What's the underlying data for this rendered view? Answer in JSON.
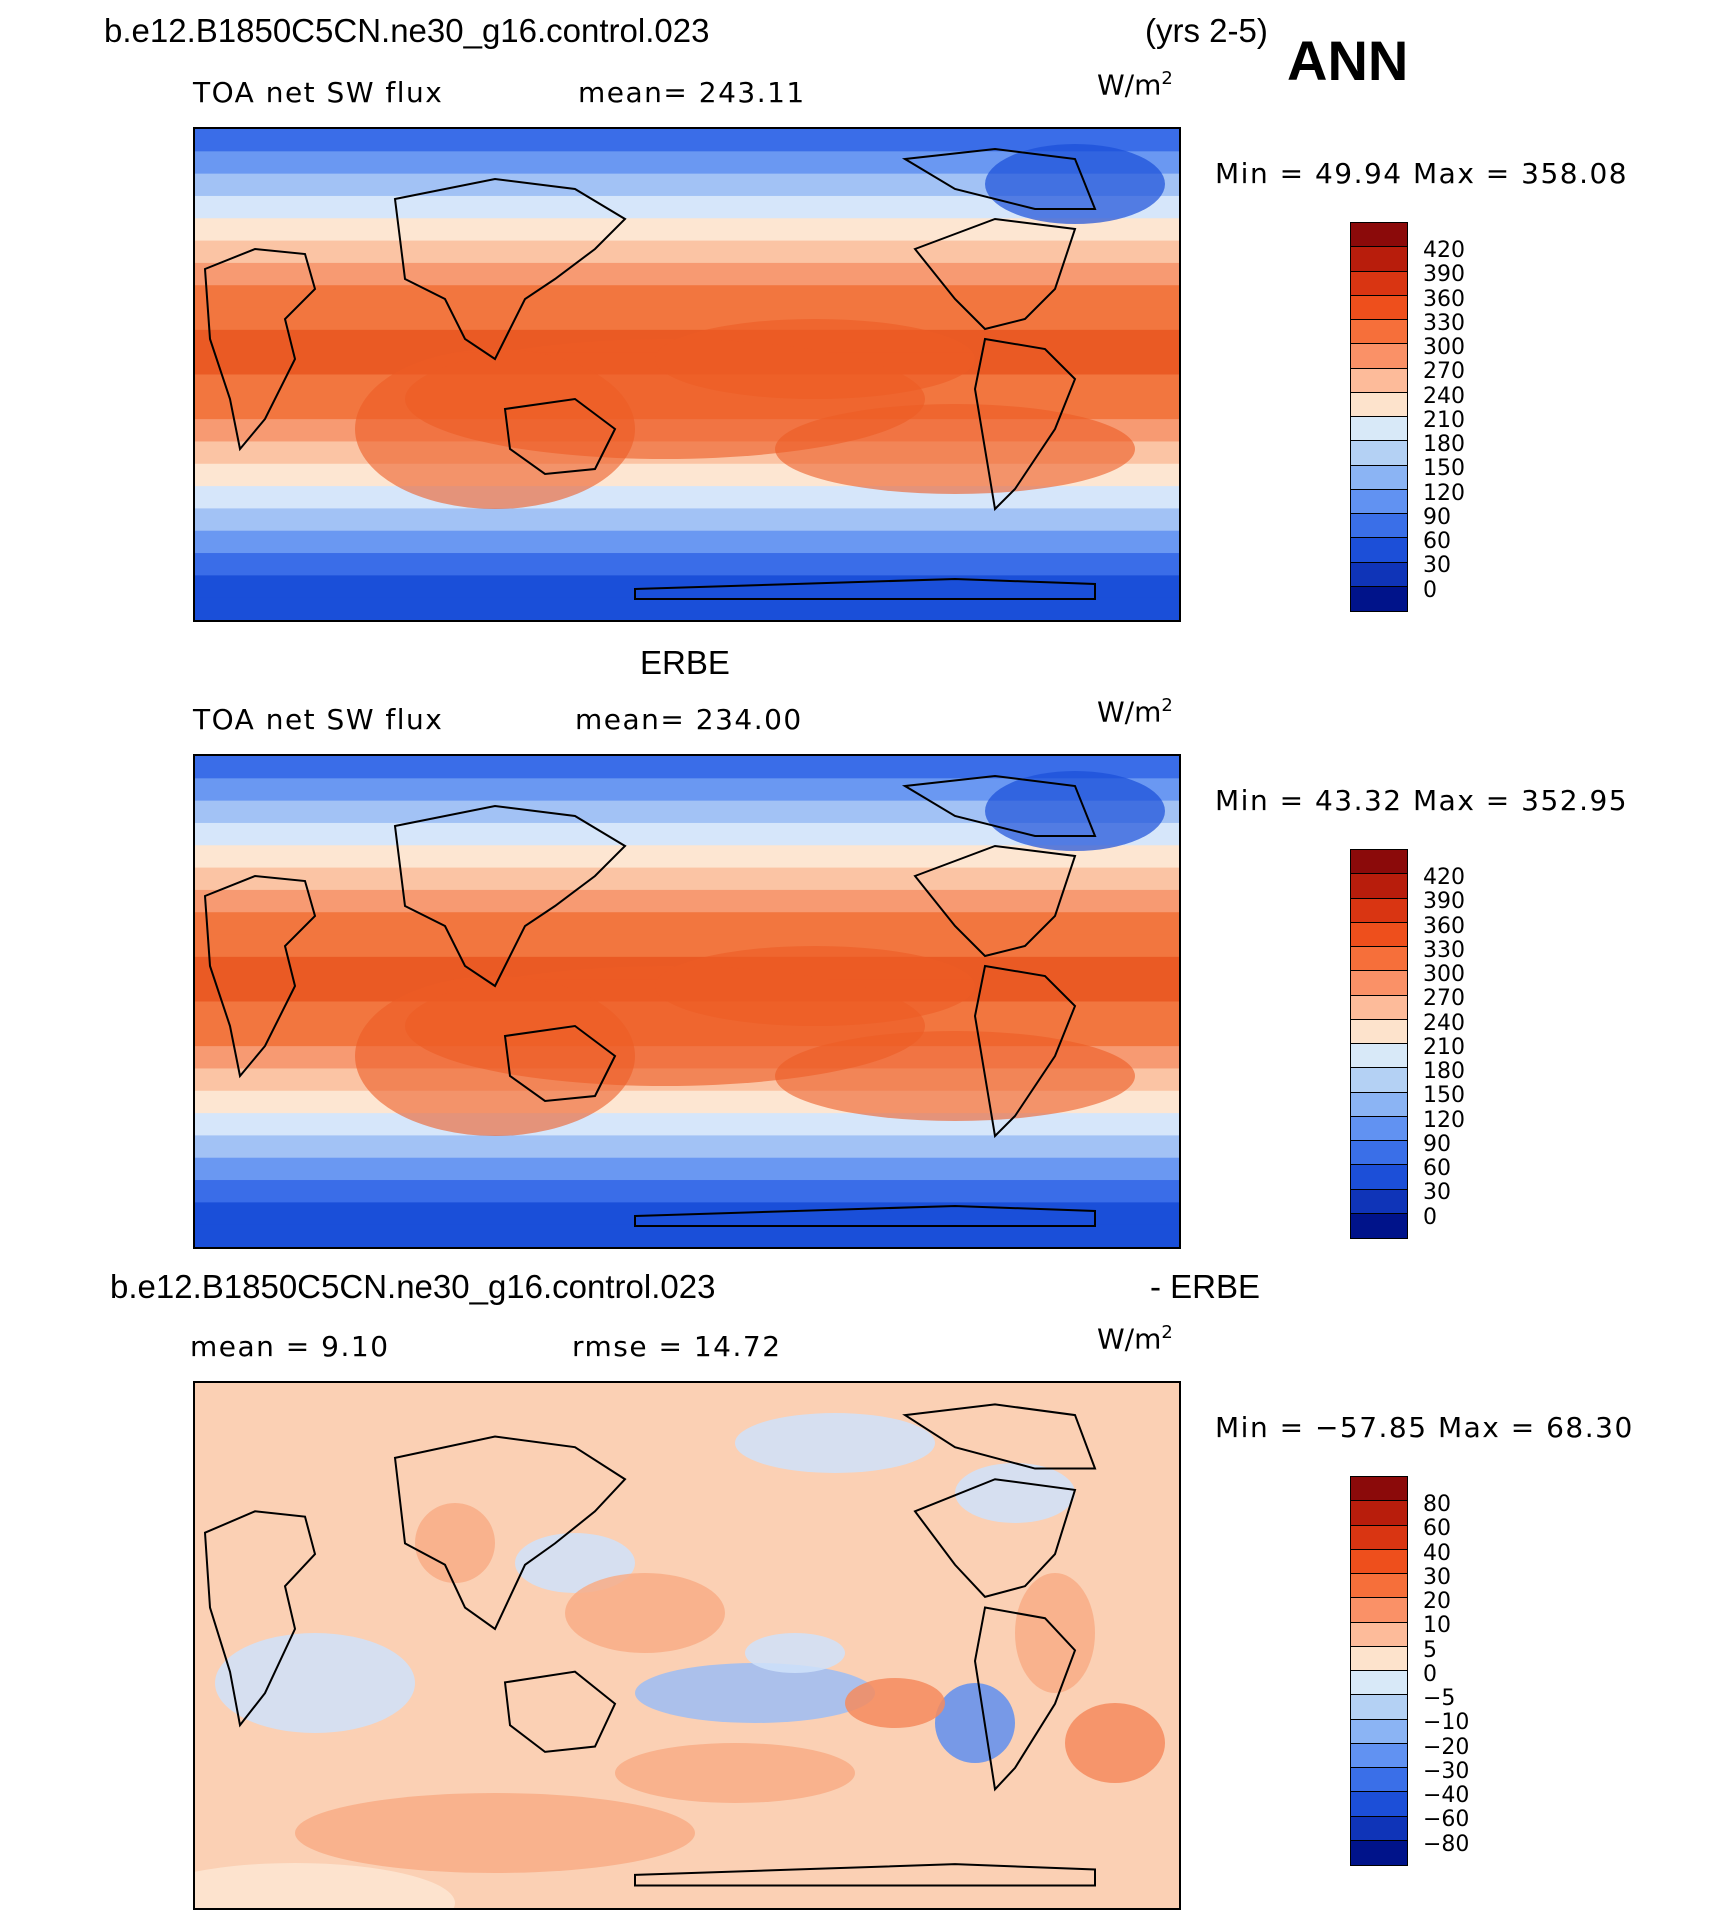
{
  "figure": {
    "case_title": "b.e12.B1850C5CN.ne30_g16.control.023",
    "years": "(yrs 2-5)",
    "season": "ANN"
  },
  "panels": [
    {
      "title": "",
      "variable": "TOA net SW flux",
      "stat1": "mean= 243.11",
      "stat2": "",
      "units": "W/m",
      "units_sup": "2",
      "minmax": "Min =   49.94  Max =  358.08",
      "colorbar_labels": [
        "420",
        "390",
        "360",
        "330",
        "300",
        "270",
        "240",
        "210",
        "180",
        "150",
        "120",
        "90",
        "60",
        "30",
        "0"
      ],
      "colorbar_colors": [
        "#8b0a0a",
        "#b81d0c",
        "#d93512",
        "#ee4f1c",
        "#f66f3a",
        "#fa9167",
        "#fdbb9a",
        "#fde3cc",
        "#d8e9f8",
        "#b4d1f4",
        "#8bb4f4",
        "#6192f2",
        "#3a6fe8",
        "#1c4fd8",
        "#0f34b8",
        "#00138a"
      ],
      "map_colors": [
        "#1a4fd9",
        "#3a6de8",
        "#6a98f2",
        "#a2c2f5",
        "#d6e6fa",
        "#fde6d2",
        "#fbc4a4",
        "#f79a72",
        "#f2763f",
        "#ea5a24"
      ]
    },
    {
      "title": "ERBE",
      "variable": "TOA net SW flux",
      "stat1": "mean= 234.00",
      "stat2": "",
      "units": "W/m",
      "units_sup": "2",
      "minmax": "Min =   43.32  Max =  352.95",
      "colorbar_labels": [
        "420",
        "390",
        "360",
        "330",
        "300",
        "270",
        "240",
        "210",
        "180",
        "150",
        "120",
        "90",
        "60",
        "30",
        "0"
      ],
      "colorbar_colors": [
        "#8b0a0a",
        "#b81d0c",
        "#d93512",
        "#ee4f1c",
        "#f66f3a",
        "#fa9167",
        "#fdbb9a",
        "#fde3cc",
        "#d8e9f8",
        "#b4d1f4",
        "#8bb4f4",
        "#6192f2",
        "#3a6fe8",
        "#1c4fd8",
        "#0f34b8",
        "#00138a"
      ],
      "map_colors": [
        "#1a4fd9",
        "#3a6de8",
        "#6a98f2",
        "#a2c2f5",
        "#d6e6fa",
        "#fde6d2",
        "#fbc4a4",
        "#f79a72",
        "#f2763f",
        "#ea5a24"
      ]
    },
    {
      "title_left": "b.e12.B1850C5CN.ne30_g16.control.023",
      "title_right": "- ERBE",
      "stat1": "mean =    9.10",
      "stat2": "rmse =   14.72",
      "units": "W/m",
      "units_sup": "2",
      "minmax": "Min = −57.85  Max =   68.30",
      "colorbar_labels": [
        "80",
        "60",
        "40",
        "30",
        "20",
        "10",
        "5",
        "0",
        "−5",
        "−10",
        "−20",
        "−30",
        "−40",
        "−60",
        "−80"
      ],
      "colorbar_colors": [
        "#8b0a0a",
        "#b81d0c",
        "#d93512",
        "#ee4f1c",
        "#f66f3a",
        "#fa9167",
        "#fdbb9a",
        "#fde3cc",
        "#d8e9f8",
        "#b4d1f4",
        "#8bb4f4",
        "#6192f2",
        "#3a6fe8",
        "#1c4fd8",
        "#0f34b8",
        "#00138a"
      ],
      "map_colors": [
        "#fbd0b4",
        "#f8ad86",
        "#f48b5e",
        "#fde6d2",
        "#cfe2fa",
        "#9cbdf4",
        "#5f8ff0"
      ]
    }
  ]
}
